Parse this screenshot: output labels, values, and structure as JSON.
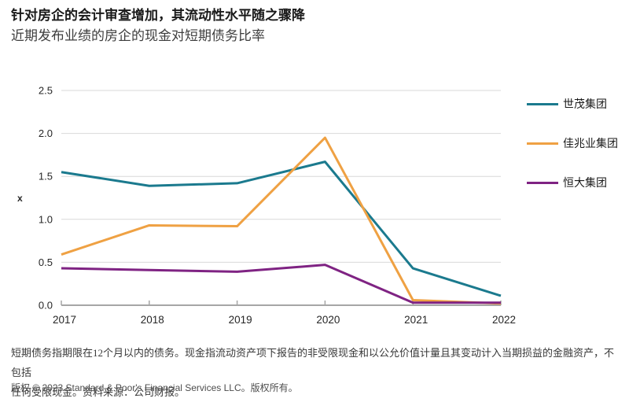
{
  "header": {
    "title": "针对房企的会计审查增加，其流动性水平随之骤降",
    "subtitle": "近期发布业绩的房企的现金对短期债务比率"
  },
  "chart_data": {
    "type": "line",
    "title": "近期发布业绩的房企的现金对短期债务比率",
    "xlabel": "",
    "ylabel": "x",
    "categories": [
      "2017",
      "2018",
      "2019",
      "2020",
      "2021",
      "2022"
    ],
    "y_ticks": [
      "0.0",
      "0.5",
      "1.0",
      "1.5",
      "2.0",
      "2.5"
    ],
    "ylim": [
      0,
      2.5
    ],
    "grid": true,
    "legend_position": "right",
    "series": [
      {
        "name": "世茂集团",
        "color": "#1b7a8e",
        "values": [
          1.55,
          1.39,
          1.42,
          1.67,
          0.43,
          0.11
        ]
      },
      {
        "name": "佳兆业集团",
        "color": "#efa143",
        "values": [
          0.59,
          0.93,
          0.92,
          1.95,
          0.06,
          0.02
        ]
      },
      {
        "name": "恒大集团",
        "color": "#7f2383",
        "values": [
          0.43,
          0.41,
          0.39,
          0.47,
          0.03,
          0.03
        ]
      }
    ],
    "colors": {
      "gridline": "#d9d9d9",
      "axis": "#a6a6a6",
      "tick_text": "#262626"
    }
  },
  "footer": {
    "footnote_lines": [
      "短期债务指期限在12个月以内的债务。现金指流动资产项下报告的非受限现金和以公允价值计量且其变动计入当期损益的金融资产，不包括",
      "任何受限现金。资料来源：公司财报。"
    ],
    "copyright": "版权 © 2023 Standard & Poor's Financial Services LLC。版权所有。"
  }
}
